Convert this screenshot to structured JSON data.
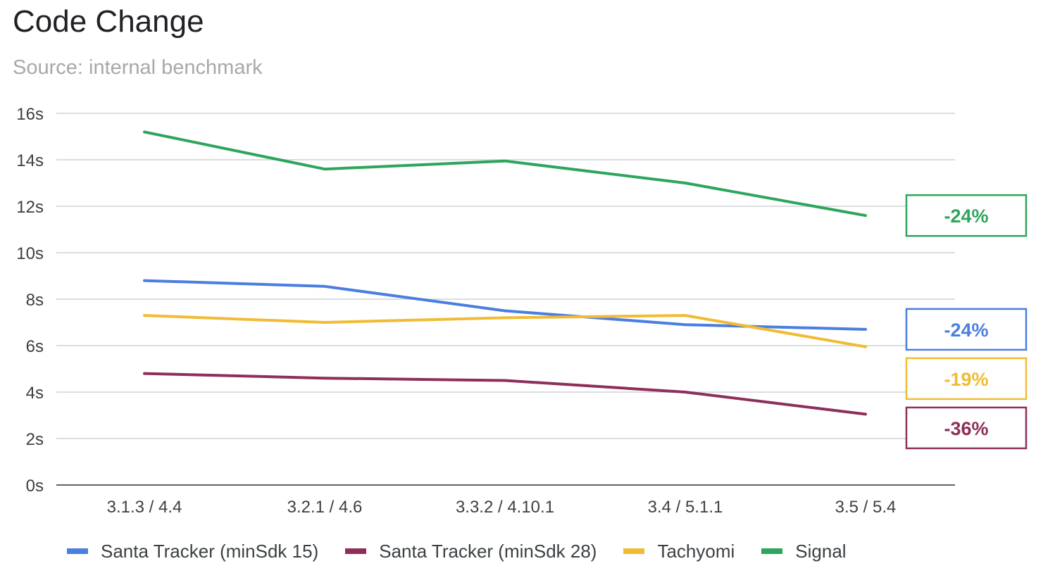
{
  "chart_data": {
    "type": "line",
    "title": "Code Change",
    "subtitle": "Source: internal benchmark",
    "categories": [
      "3.1.3 / 4.4",
      "3.2.1 / 4.6",
      "3.3.2 / 4.10.1",
      "3.4 / 5.1.1",
      "3.5 / 5.4"
    ],
    "y_ticks": [
      "0s",
      "2s",
      "4s",
      "6s",
      "8s",
      "10s",
      "12s",
      "14s",
      "16s"
    ],
    "ylim": [
      0,
      16
    ],
    "y_unit": "s",
    "grid": true,
    "legend_position": "bottom",
    "series": [
      {
        "name": "Santa Tracker (minSdk 15)",
        "color": "#4a7ee0",
        "values": [
          8.8,
          8.55,
          7.5,
          6.9,
          6.7
        ],
        "change_label": "-24%"
      },
      {
        "name": "Santa Tracker (minSdk 28)",
        "color": "#8e2f5a",
        "values": [
          4.8,
          4.6,
          4.5,
          4.0,
          3.05
        ],
        "change_label": "-36%"
      },
      {
        "name": "Tachyomi",
        "color": "#f1bb34",
        "values": [
          7.3,
          7.0,
          7.2,
          7.3,
          5.95
        ],
        "change_label": "-19%"
      },
      {
        "name": "Signal",
        "color": "#2ea55c",
        "values": [
          15.2,
          13.6,
          13.95,
          13.0,
          11.6
        ],
        "change_label": "-24%"
      }
    ]
  }
}
